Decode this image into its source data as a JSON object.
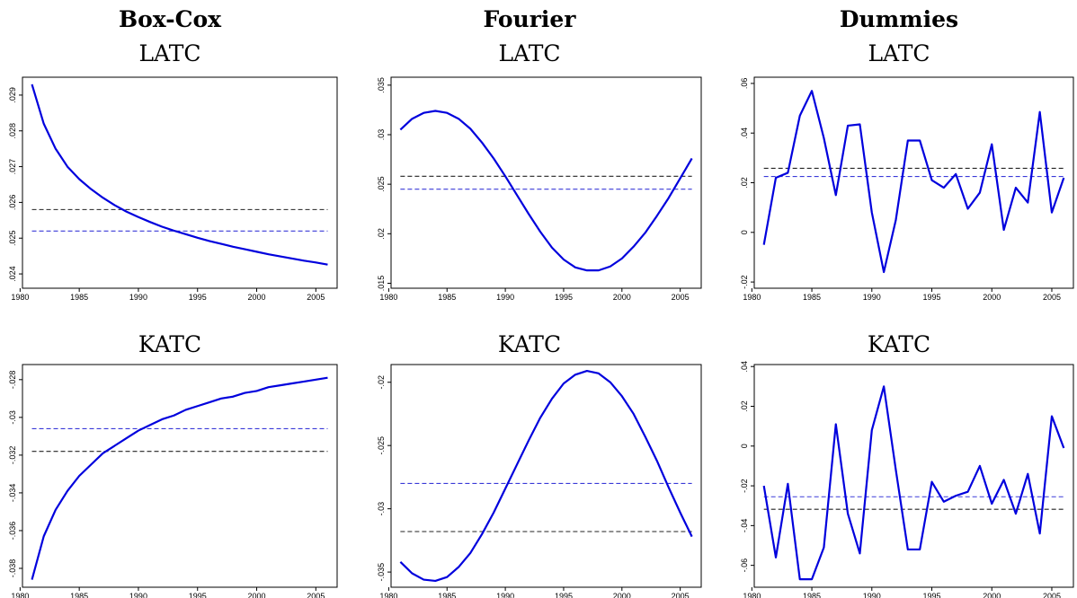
{
  "column_titles": [
    "Box-Cox",
    "Fourier",
    "Dummies"
  ],
  "colors": {
    "series": "#0000dd",
    "ref_black": "#222222",
    "ref_blue": "#3a3ad8"
  },
  "chart_data": [
    {
      "type": "line",
      "column": "Box-Cox",
      "title": "LATC",
      "x": [
        1981,
        1982,
        1983,
        1984,
        1985,
        1986,
        1987,
        1988,
        1989,
        1990,
        1991,
        1992,
        1993,
        1994,
        1995,
        1996,
        1997,
        1998,
        1999,
        2000,
        2001,
        2002,
        2003,
        2004,
        2005,
        2006
      ],
      "values": [
        0.0293,
        0.0282,
        0.0275,
        0.027,
        0.02665,
        0.02637,
        0.02613,
        0.02592,
        0.02574,
        0.02559,
        0.02545,
        0.02532,
        0.02521,
        0.02511,
        0.02501,
        0.02492,
        0.02484,
        0.02476,
        0.02469,
        0.02462,
        0.02455,
        0.02449,
        0.02443,
        0.02437,
        0.02432,
        0.02426
      ],
      "ref_black": 0.0258,
      "ref_blue": 0.0252,
      "xlim": [
        1980.2,
        2006.8
      ],
      "ylim": [
        0.0236,
        0.0295
      ],
      "xticks": [
        1980,
        1985,
        1990,
        1995,
        2000,
        2005
      ],
      "xtick_labels": [
        "1980",
        "1985",
        "1990",
        "1995",
        "2000",
        "2005"
      ],
      "yticks": [
        0.024,
        0.025,
        0.026,
        0.027,
        0.028,
        0.029
      ],
      "ytick_labels": [
        ".024",
        ".025",
        ".026",
        ".027",
        ".028",
        ".029"
      ]
    },
    {
      "type": "line",
      "column": "Fourier",
      "title": "LATC",
      "x": [
        1981,
        1982,
        1983,
        1984,
        1985,
        1986,
        1987,
        1988,
        1989,
        1990,
        1991,
        1992,
        1993,
        1994,
        1995,
        1996,
        1997,
        1998,
        1999,
        2000,
        2001,
        2002,
        2003,
        2004,
        2005,
        2006
      ],
      "values": [
        0.0305,
        0.0316,
        0.0322,
        0.0324,
        0.0322,
        0.0316,
        0.0306,
        0.0292,
        0.0276,
        0.0258,
        0.0239,
        0.022,
        0.0202,
        0.0186,
        0.0174,
        0.0166,
        0.0163,
        0.0163,
        0.0167,
        0.0175,
        0.0187,
        0.0201,
        0.0218,
        0.0236,
        0.0256,
        0.0276
      ],
      "ref_black": 0.0258,
      "ref_blue": 0.0245,
      "xlim": [
        1980.2,
        2006.8
      ],
      "ylim": [
        0.0145,
        0.0358
      ],
      "xticks": [
        1980,
        1985,
        1990,
        1995,
        2000,
        2005
      ],
      "xtick_labels": [
        "1980",
        "1985",
        "1990",
        "1995",
        "2000",
        "2005"
      ],
      "yticks": [
        0.015,
        0.02,
        0.025,
        0.03,
        0.035
      ],
      "ytick_labels": [
        ".015",
        ".02",
        ".025",
        ".03",
        ".035"
      ]
    },
    {
      "type": "line",
      "column": "Dummies",
      "title": "LATC",
      "x": [
        1981,
        1982,
        1983,
        1984,
        1985,
        1986,
        1987,
        1988,
        1989,
        1990,
        1991,
        1992,
        1993,
        1994,
        1995,
        1996,
        1997,
        1998,
        1999,
        2000,
        2001,
        2002,
        2003,
        2004,
        2005,
        2006
      ],
      "values": [
        -0.005,
        0.022,
        0.024,
        0.047,
        0.057,
        0.038,
        0.015,
        0.043,
        0.0435,
        0.008,
        -0.016,
        0.005,
        0.037,
        0.037,
        0.021,
        0.018,
        0.0235,
        0.0095,
        0.016,
        0.0355,
        0.001,
        0.018,
        0.012,
        0.0485,
        0.008,
        0.022
      ],
      "ref_black": 0.0258,
      "ref_blue": 0.0225,
      "xlim": [
        1980.2,
        2006.8
      ],
      "ylim": [
        -0.0225,
        0.0625
      ],
      "xticks": [
        1980,
        1985,
        1990,
        1995,
        2000,
        2005
      ],
      "xtick_labels": [
        "1980",
        "1985",
        "1990",
        "1995",
        "2000",
        "2005"
      ],
      "yticks": [
        -0.02,
        0,
        0.02,
        0.04,
        0.06
      ],
      "ytick_labels": [
        "-.02",
        "0",
        ".02",
        ".04",
        ".06"
      ]
    },
    {
      "type": "line",
      "column": "Box-Cox",
      "title": "KATC",
      "x": [
        1981,
        1982,
        1983,
        1984,
        1985,
        1986,
        1987,
        1988,
        1989,
        1990,
        1991,
        1992,
        1993,
        1994,
        1995,
        1996,
        1997,
        1998,
        1999,
        2000,
        2001,
        2002,
        2003,
        2004,
        2005,
        2006
      ],
      "values": [
        -0.0386,
        -0.0363,
        -0.0349,
        -0.0339,
        -0.0331,
        -0.0325,
        -0.0319,
        -0.0315,
        -0.0311,
        -0.0307,
        -0.0304,
        -0.0301,
        -0.0299,
        -0.0296,
        -0.0294,
        -0.0292,
        -0.029,
        -0.0289,
        -0.0287,
        -0.0286,
        -0.0284,
        -0.0283,
        -0.0282,
        -0.0281,
        -0.028,
        -0.0279
      ],
      "ref_black": -0.0318,
      "ref_blue": -0.0306,
      "xlim": [
        1980.2,
        2006.8
      ],
      "ylim": [
        -0.039,
        -0.0272
      ],
      "xticks": [
        1980,
        1985,
        1990,
        1995,
        2000,
        2005
      ],
      "xtick_labels": [
        "1980",
        "1985",
        "1990",
        "1995",
        "2000",
        "2005"
      ],
      "yticks": [
        -0.038,
        -0.036,
        -0.034,
        -0.032,
        -0.03,
        -0.028
      ],
      "ytick_labels": [
        "-.038",
        "-.036",
        "-.034",
        "-.032",
        "-.03",
        "-.028"
      ]
    },
    {
      "type": "line",
      "column": "Fourier",
      "title": "KATC",
      "x": [
        1981,
        1982,
        1983,
        1984,
        1985,
        1986,
        1987,
        1988,
        1989,
        1990,
        1991,
        1992,
        1993,
        1994,
        1995,
        1996,
        1997,
        1998,
        1999,
        2000,
        2001,
        2002,
        2003,
        2004,
        2005,
        2006
      ],
      "values": [
        -0.0342,
        -0.0351,
        -0.0356,
        -0.0357,
        -0.0354,
        -0.0346,
        -0.0335,
        -0.032,
        -0.0303,
        -0.0284,
        -0.0265,
        -0.0246,
        -0.0228,
        -0.0213,
        -0.0201,
        -0.0194,
        -0.0191,
        -0.0193,
        -0.02,
        -0.0211,
        -0.0225,
        -0.0243,
        -0.0262,
        -0.0283,
        -0.0303,
        -0.0322
      ],
      "ref_black": -0.0318,
      "ref_blue": -0.028,
      "xlim": [
        1980.2,
        2006.8
      ],
      "ylim": [
        -0.0362,
        -0.0186
      ],
      "xticks": [
        1980,
        1985,
        1990,
        1995,
        2000,
        2005
      ],
      "xtick_labels": [
        "1980",
        "1985",
        "1990",
        "1995",
        "2000",
        "2005"
      ],
      "yticks": [
        -0.035,
        -0.03,
        -0.025,
        -0.02
      ],
      "ytick_labels": [
        "-.035",
        "-.03",
        "-.025",
        "-.02"
      ]
    },
    {
      "type": "line",
      "column": "Dummies",
      "title": "KATC",
      "x": [
        1981,
        1982,
        1983,
        1984,
        1985,
        1986,
        1987,
        1988,
        1989,
        1990,
        1991,
        1992,
        1993,
        1994,
        1995,
        1996,
        1997,
        1998,
        1999,
        2000,
        2001,
        2002,
        2003,
        2004,
        2005,
        2006
      ],
      "values": [
        -0.02,
        -0.056,
        -0.019,
        -0.067,
        -0.067,
        -0.051,
        0.011,
        -0.034,
        -0.054,
        0.008,
        0.03,
        -0.012,
        -0.052,
        -0.052,
        -0.018,
        -0.028,
        -0.025,
        -0.023,
        -0.01,
        -0.029,
        -0.017,
        -0.034,
        -0.014,
        -0.044,
        0.015,
        -0.001
      ],
      "ref_black": -0.0318,
      "ref_blue": -0.0255,
      "xlim": [
        1980.2,
        2006.8
      ],
      "ylim": [
        -0.071,
        0.041
      ],
      "xticks": [
        1980,
        1985,
        1990,
        1995,
        2000,
        2005
      ],
      "xtick_labels": [
        "1980",
        "1985",
        "1990",
        "1995",
        "2000",
        "2005"
      ],
      "yticks": [
        -0.06,
        -0.04,
        -0.02,
        0,
        0.02,
        0.04
      ],
      "ytick_labels": [
        "-.06",
        "-.04",
        "-.02",
        "0",
        ".02",
        ".04"
      ]
    }
  ]
}
